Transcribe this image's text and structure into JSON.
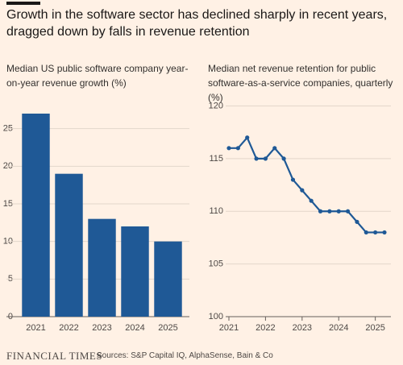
{
  "title": "Growth in the software sector has declined sharply in recent years, dragged down by falls in revenue retention",
  "brand": "FINANCIAL TIMES",
  "source": "Sources: S&P Capital IQ, AlphaSense, Bain & Co",
  "chart_data": [
    {
      "type": "bar",
      "title": "Median US public software company year-on-year revenue growth (%)",
      "categories": [
        "2021",
        "2022",
        "2023",
        "2024",
        "2025"
      ],
      "values": [
        27,
        19,
        13,
        12,
        10
      ],
      "color": "#1f5996",
      "ylim": [
        0,
        28.5
      ],
      "yticks": [
        0,
        5,
        10,
        15,
        20,
        25
      ],
      "grid": true
    },
    {
      "type": "line",
      "title": "Median net revenue retention for public software-as-a-service companies, quarterly (%)",
      "x": [
        2021,
        2021.25,
        2021.5,
        2021.75,
        2022,
        2022.25,
        2022.5,
        2022.75,
        2023,
        2023.25,
        2023.5,
        2023.75,
        2024,
        2024.25,
        2024.5,
        2024.75,
        2025,
        2025.25
      ],
      "values": [
        116,
        116,
        117,
        115,
        115,
        116,
        115,
        113,
        112,
        111,
        110,
        110,
        110,
        110,
        109,
        108,
        108,
        108
      ],
      "color": "#1f5996",
      "xlim": [
        2021,
        2025.25
      ],
      "xticks": [
        2021,
        2022,
        2023,
        2024,
        2025
      ],
      "ylim": [
        100,
        120.5
      ],
      "yticks": [
        100,
        105,
        110,
        115,
        120
      ],
      "grid": true
    }
  ]
}
